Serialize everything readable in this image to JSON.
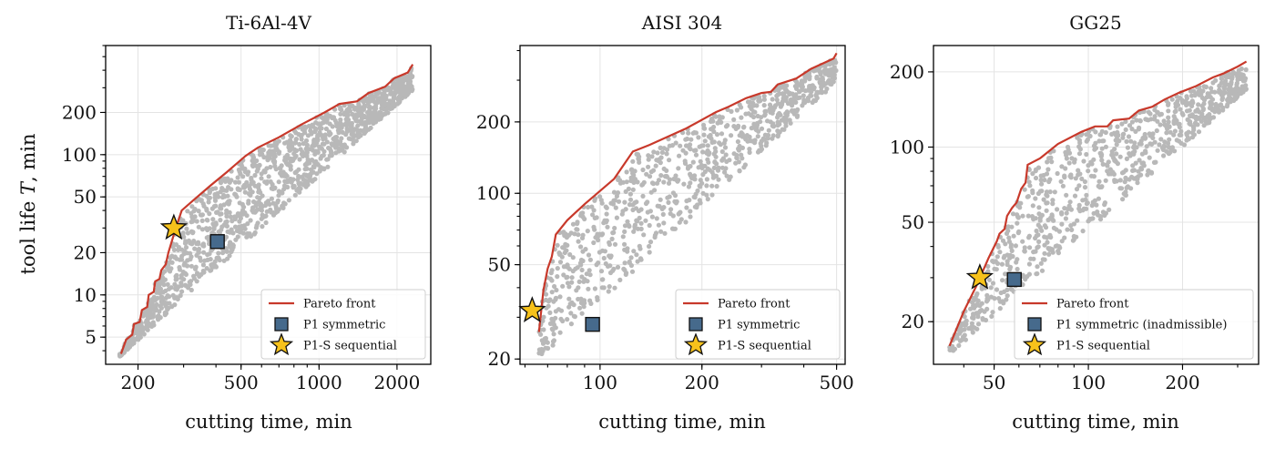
{
  "figure": {
    "panels": [
      {
        "title": "Ti-6Al-4V",
        "xlabel": "cutting time, min",
        "ylabel": "tool life T, min",
        "legend": [
          "Pareto front",
          "P1 symmetric",
          "P1-S sequential"
        ]
      },
      {
        "title": "AISI 304",
        "xlabel": "cutting time, min",
        "ylabel": "",
        "legend": [
          "Pareto front",
          "P1 symmetric",
          "P1-S sequential"
        ]
      },
      {
        "title": "GG25",
        "xlabel": "cutting time, min",
        "ylabel": "",
        "legend": [
          "Pareto front",
          "P1 symmetric (inadmissible)",
          "P1-S sequential"
        ]
      }
    ]
  },
  "colors": {
    "pareto": "#c8392b",
    "cloud": "#b8b8b8",
    "symmetric": "#466a8c",
    "sequential": "#f7c21b"
  },
  "chart_data": [
    {
      "type": "scatter",
      "title": "Ti-6Al-4V",
      "xlabel": "cutting time, min",
      "ylabel": "tool life T, min",
      "xscale": "log",
      "yscale": "log",
      "xlim": [
        150,
        2700
      ],
      "ylim": [
        3.2,
        600
      ],
      "xticks": [
        200,
        500,
        1000,
        2000
      ],
      "yticks": [
        5,
        10,
        20,
        50,
        100,
        200
      ],
      "grid": true,
      "legend_position": "lower right",
      "cloud": {
        "x_range": [
          170,
          2300
        ],
        "y_range": [
          3.8,
          450
        ],
        "band": "diagonal"
      },
      "series": [
        {
          "name": "Pareto front",
          "points": [
            [
              172,
              3.8
            ],
            [
              180,
              4.8
            ],
            [
              190,
              5.2
            ],
            [
              193,
              6.2
            ],
            [
              203,
              6.4
            ],
            [
              207,
              7.8
            ],
            [
              217,
              8.2
            ],
            [
              220,
              10
            ],
            [
              230,
              10.5
            ],
            [
              233,
              12.5
            ],
            [
              242,
              13
            ],
            [
              246,
              15
            ],
            [
              256,
              16.5
            ],
            [
              262,
              20
            ],
            [
              268,
              23
            ],
            [
              280,
              30
            ],
            [
              295,
              40
            ],
            [
              330,
              48
            ],
            [
              380,
              60
            ],
            [
              440,
              75
            ],
            [
              520,
              98
            ],
            [
              580,
              112
            ],
            [
              700,
              133
            ],
            [
              860,
              165
            ],
            [
              1050,
              200
            ],
            [
              1200,
              230
            ],
            [
              1400,
              240
            ],
            [
              1550,
              275
            ],
            [
              1800,
              305
            ],
            [
              1950,
              350
            ],
            [
              2200,
              385
            ],
            [
              2300,
              440
            ]
          ]
        },
        {
          "name": "P1 symmetric",
          "points": [
            [
              405,
              24
            ]
          ]
        },
        {
          "name": "P1-S sequential",
          "points": [
            [
              275,
              30
            ]
          ]
        }
      ]
    },
    {
      "type": "scatter",
      "title": "AISI 304",
      "xlabel": "cutting time, min",
      "ylabel": "",
      "xscale": "log",
      "yscale": "log",
      "xlim": [
        58,
        530
      ],
      "ylim": [
        19,
        420
      ],
      "xticks": [
        100,
        200,
        500
      ],
      "yticks": [
        20,
        50,
        100,
        200
      ],
      "grid": true,
      "legend_position": "lower right",
      "cloud": {
        "x_range": [
          66,
          500
        ],
        "y_range": [
          21,
          390
        ],
        "band": "diagonal"
      },
      "series": [
        {
          "name": "Pareto front",
          "points": [
            [
              66,
              26
            ],
            [
              68,
              39
            ],
            [
              70,
              48
            ],
            [
              72,
              54
            ],
            [
              74,
              67
            ],
            [
              80,
              77
            ],
            [
              90,
              90
            ],
            [
              110,
              115
            ],
            [
              125,
              150
            ],
            [
              140,
              160
            ],
            [
              180,
              188
            ],
            [
              220,
              220
            ],
            [
              240,
              232
            ],
            [
              270,
              252
            ],
            [
              300,
              265
            ],
            [
              320,
              268
            ],
            [
              335,
              288
            ],
            [
              380,
              305
            ],
            [
              420,
              335
            ],
            [
              490,
              370
            ],
            [
              500,
              390
            ]
          ]
        },
        {
          "name": "P1 symmetric",
          "points": [
            [
              95,
              28
            ]
          ]
        },
        {
          "name": "P1-S sequential",
          "points": [
            [
              63,
              32
            ]
          ]
        }
      ]
    },
    {
      "type": "scatter",
      "title": "GG25",
      "xlabel": "cutting time, min",
      "ylabel": "",
      "xscale": "log",
      "yscale": "log",
      "xlim": [
        32,
        350
      ],
      "ylim": [
        13.5,
        255
      ],
      "xticks": [
        50,
        100,
        200
      ],
      "yticks": [
        20,
        50,
        100,
        200
      ],
      "grid": true,
      "legend_position": "lower right",
      "cloud": {
        "x_range": [
          36,
          320
        ],
        "y_range": [
          15.5,
          225
        ],
        "band": "diagonal"
      },
      "series": [
        {
          "name": "Pareto front",
          "points": [
            [
              36,
              16
            ],
            [
              40,
              22
            ],
            [
              44,
              28
            ],
            [
              48,
              36
            ],
            [
              51,
              42
            ],
            [
              52,
              45
            ],
            [
              54,
              47
            ],
            [
              55,
              53
            ],
            [
              57,
              57
            ],
            [
              59,
              60
            ],
            [
              61,
              68
            ],
            [
              63,
              72
            ],
            [
              64,
              85
            ],
            [
              70,
              90
            ],
            [
              80,
              103
            ],
            [
              95,
              115
            ],
            [
              105,
              121
            ],
            [
              115,
              121
            ],
            [
              120,
              128
            ],
            [
              135,
              130
            ],
            [
              145,
              140
            ],
            [
              160,
              145
            ],
            [
              175,
              155
            ],
            [
              195,
              165
            ],
            [
              220,
              175
            ],
            [
              250,
              190
            ],
            [
              270,
              197
            ],
            [
              300,
              210
            ],
            [
              320,
              220
            ]
          ]
        },
        {
          "name": "P1 symmetric (inadmissible)",
          "points": [
            [
              58,
              29.5
            ]
          ]
        },
        {
          "name": "P1-S sequential",
          "points": [
            [
              45,
              30
            ]
          ]
        }
      ]
    }
  ]
}
